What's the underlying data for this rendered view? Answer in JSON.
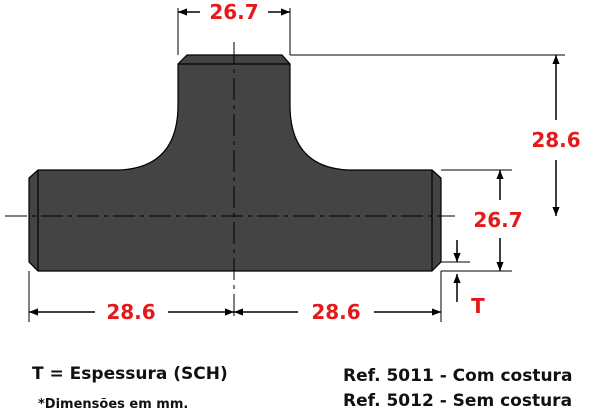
{
  "dimensions": {
    "top_width": "26.7",
    "branch_height": "28.6",
    "run_height": "26.7",
    "left_half": "28.6",
    "right_half": "28.6",
    "thickness": "T"
  },
  "notes": {
    "thickness_legend": "T = Espessura (SCH)",
    "dimensions_note": "*Dimensões em mm.",
    "ref_seamed": "Ref. 5011 - Com costura",
    "ref_seamless": "Ref. 5012 - Sem costura"
  },
  "colors": {
    "body_fill": "#444444",
    "dimension_text": "#e5191a",
    "lines": "#000000"
  }
}
